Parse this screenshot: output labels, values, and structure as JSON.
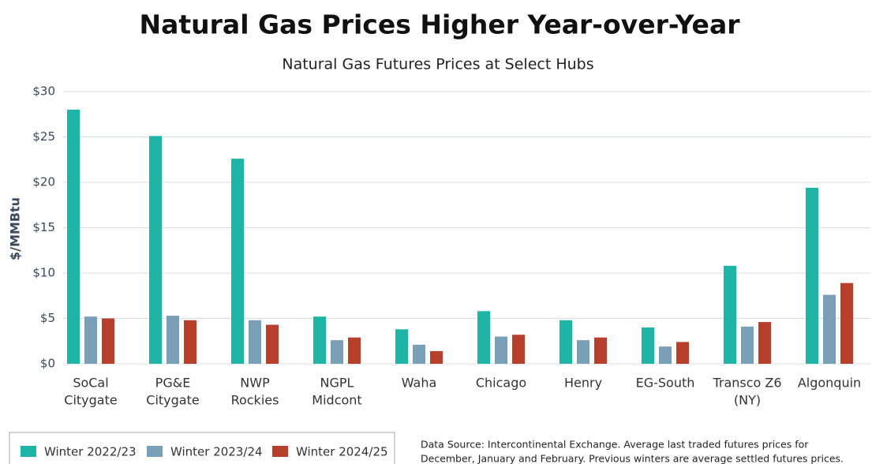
{
  "chart_data": {
    "type": "bar",
    "title": "Natural Gas Prices Higher Year-over-Year",
    "subtitle": "Natural Gas Futures Prices at Select Hubs",
    "y_label": "$/MMBtu",
    "categories": [
      [
        "SoCal",
        "Citygate"
      ],
      [
        "PG&E",
        "Citygate"
      ],
      [
        "NWP",
        "Rockies"
      ],
      [
        "NGPL",
        "Midcont"
      ],
      [
        "Waha"
      ],
      [
        "Chicago"
      ],
      [
        "Henry"
      ],
      [
        "EG-South"
      ],
      [
        "Transco Z6",
        "(NY)"
      ],
      [
        "Algonquin"
      ]
    ],
    "series": [
      {
        "name": "Winter 2022/23",
        "color": "#1fb5a6",
        "values": [
          28,
          25.1,
          22.6,
          5.2,
          3.8,
          5.8,
          4.8,
          4.0,
          10.8,
          19.4
        ]
      },
      {
        "name": "Winter 2023/24",
        "color": "#7a9fb9",
        "values": [
          5.2,
          5.3,
          4.8,
          2.6,
          2.1,
          3.0,
          2.6,
          1.9,
          4.1,
          7.6
        ]
      },
      {
        "name": "Winter 2024/25",
        "color": "#b5402b",
        "values": [
          5.0,
          4.8,
          4.3,
          2.9,
          1.4,
          3.2,
          2.9,
          2.4,
          4.6,
          8.9
        ]
      }
    ],
    "ylim": [
      0,
      30
    ],
    "yticks": [
      {
        "value": 0,
        "label": "$0"
      },
      {
        "value": 5,
        "label": "$5"
      },
      {
        "value": 10,
        "label": "$10"
      },
      {
        "value": 15,
        "label": "$15"
      },
      {
        "value": 20,
        "label": "$20"
      },
      {
        "value": 25,
        "label": "$25"
      },
      {
        "value": 30,
        "label": "$30"
      }
    ],
    "grid": true,
    "legend": "bottom-left",
    "source_note": [
      "Data Source: Intercontinental Exchange.  Average last traded futures prices for",
      "December, January and February. Previous winters are average settled futures prices."
    ]
  }
}
